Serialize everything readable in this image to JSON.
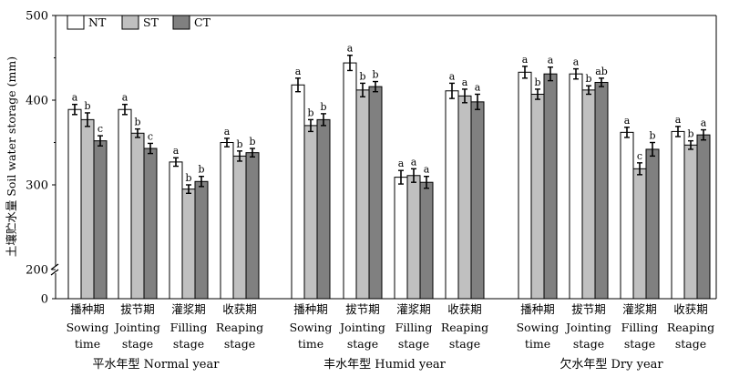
{
  "chart_data": {
    "type": "bar",
    "ylabel": "土壤贮水量 Soil water storage (mm)",
    "ylim": [
      0,
      500
    ],
    "axis_break": [
      0,
      200
    ],
    "yticks": [
      0,
      200,
      300,
      400,
      500
    ],
    "legend": {
      "placement": "top-left",
      "entries": [
        "NT",
        "ST",
        "CT"
      ]
    },
    "colors": {
      "NT": "#ffffff",
      "ST": "#c0c0c0",
      "CT": "#808080",
      "edge": "#000000"
    },
    "groups": [
      {
        "label": "平水年型 Normal year",
        "stages": [
          {
            "cn": "播种期",
            "en1": "Sowing",
            "en2": "time",
            "values": [
              389,
              377,
              352
            ],
            "errors": [
              6,
              8,
              6
            ],
            "letters": [
              "a",
              "b",
              "c"
            ]
          },
          {
            "cn": "拔节期",
            "en1": "Jointing",
            "en2": "stage",
            "values": [
              389,
              361,
              343
            ],
            "errors": [
              6,
              5,
              6
            ],
            "letters": [
              "a",
              "b",
              "c"
            ]
          },
          {
            "cn": "灌浆期",
            "en1": "Filling",
            "en2": "stage",
            "values": [
              327,
              295,
              304
            ],
            "errors": [
              5,
              5,
              6
            ],
            "letters": [
              "a",
              "b",
              "b"
            ]
          },
          {
            "cn": "收获期",
            "en1": "Reaping",
            "en2": "stage",
            "values": [
              350,
              334,
              338
            ],
            "errors": [
              5,
              6,
              5
            ],
            "letters": [
              "a",
              "b",
              "b"
            ]
          }
        ]
      },
      {
        "label": "丰水年型 Humid year",
        "stages": [
          {
            "cn": "播种期",
            "en1": "Sowing",
            "en2": "time",
            "values": [
              418,
              370,
              377
            ],
            "errors": [
              8,
              7,
              7
            ],
            "letters": [
              "a",
              "b",
              "b"
            ]
          },
          {
            "cn": "拔节期",
            "en1": "Jointing",
            "en2": "stage",
            "values": [
              444,
              412,
              416
            ],
            "errors": [
              9,
              8,
              6
            ],
            "letters": [
              "a",
              "b",
              "b"
            ]
          },
          {
            "cn": "灌浆期",
            "en1": "Filling",
            "en2": "stage",
            "values": [
              309,
              311,
              303
            ],
            "errors": [
              8,
              8,
              7
            ],
            "letters": [
              "a",
              "a",
              "a"
            ]
          },
          {
            "cn": "收获期",
            "en1": "Reaping",
            "en2": "stage",
            "values": [
              411,
              405,
              398
            ],
            "errors": [
              9,
              8,
              9
            ],
            "letters": [
              "a",
              "a",
              "a"
            ]
          }
        ]
      },
      {
        "label": "欠水年型 Dry year",
        "stages": [
          {
            "cn": "播种期",
            "en1": "Sowing",
            "en2": "time",
            "values": [
              433,
              407,
              431
            ],
            "errors": [
              7,
              6,
              8
            ],
            "letters": [
              "a",
              "b",
              "a"
            ]
          },
          {
            "cn": "拔节期",
            "en1": "Jointing",
            "en2": "stage",
            "values": [
              431,
              412,
              421
            ],
            "errors": [
              6,
              5,
              5
            ],
            "letters": [
              "a",
              "b",
              "ab"
            ]
          },
          {
            "cn": "灌浆期",
            "en1": "Filling",
            "en2": "stage",
            "values": [
              362,
              319,
              342
            ],
            "errors": [
              6,
              7,
              8
            ],
            "letters": [
              "a",
              "c",
              "b"
            ]
          },
          {
            "cn": "收获期",
            "en1": "Reaping",
            "en2": "stage",
            "values": [
              363,
              347,
              359
            ],
            "errors": [
              6,
              5,
              6
            ],
            "letters": [
              "a",
              "b",
              "a"
            ]
          }
        ]
      }
    ]
  }
}
